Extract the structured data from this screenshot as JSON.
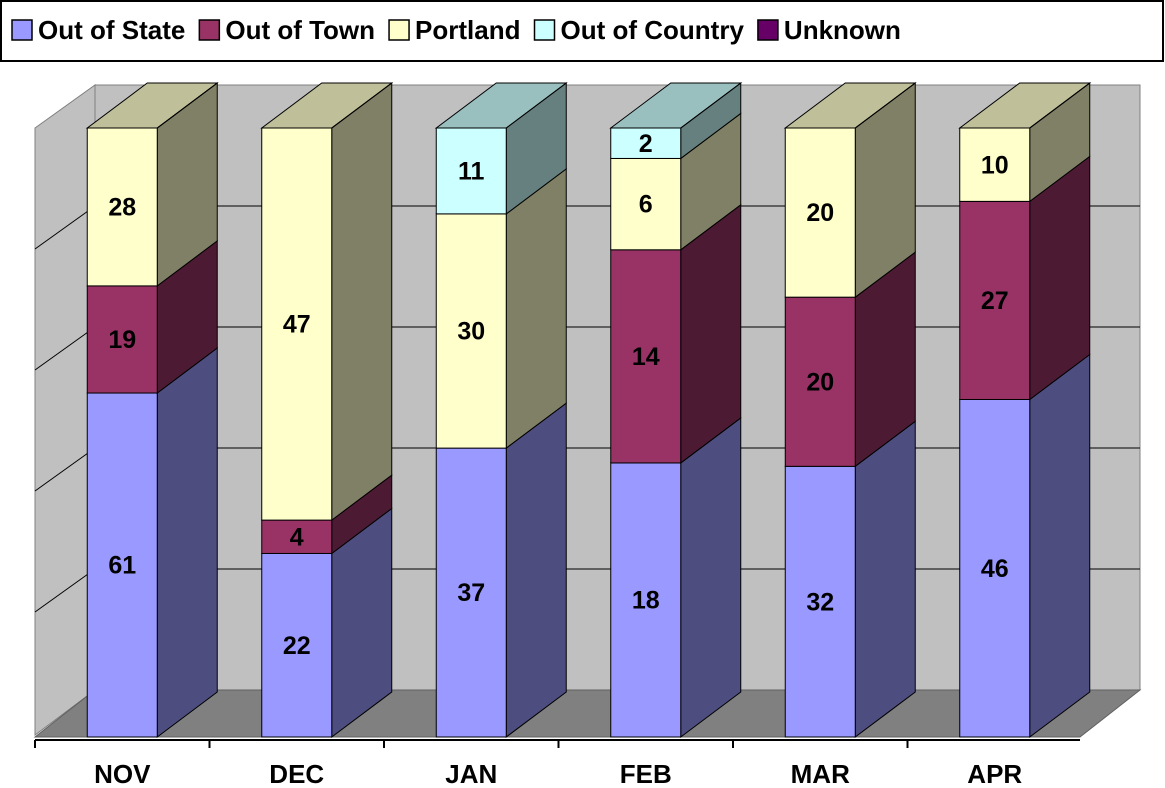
{
  "chart_data": {
    "type": "bar",
    "stacking": "percent",
    "categories": [
      "NOV",
      "DEC",
      "JAN",
      "FEB",
      "MAR",
      "APR"
    ],
    "series": [
      {
        "name": "Out of State",
        "color": "#9999ff",
        "values": [
          61,
          22,
          37,
          18,
          32,
          46
        ]
      },
      {
        "name": "Out of Town",
        "color": "#993366",
        "values": [
          19,
          4,
          0,
          14,
          20,
          27
        ]
      },
      {
        "name": "Portland",
        "color": "#ffffcc",
        "values": [
          28,
          47,
          30,
          6,
          20,
          10
        ]
      },
      {
        "name": "Out of Country",
        "color": "#ccffff",
        "values": [
          0,
          0,
          11,
          2,
          0,
          0
        ]
      },
      {
        "name": "Unknown",
        "color": "#660066",
        "values": [
          0,
          0,
          0,
          0,
          0,
          0
        ]
      }
    ],
    "legend": "top"
  }
}
